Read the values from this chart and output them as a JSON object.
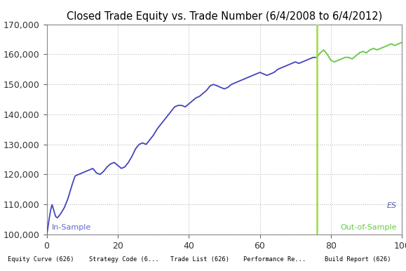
{
  "title": "Closed Trade Equity vs. Trade Number (6/4/2008 to 6/4/2012)",
  "xlim": [
    0,
    100
  ],
  "ylim": [
    100000,
    170000
  ],
  "xticks": [
    0,
    20,
    40,
    60,
    80,
    100
  ],
  "yticks": [
    100000,
    110000,
    120000,
    130000,
    140000,
    150000,
    160000,
    170000
  ],
  "vline_x": 76,
  "is_label": "In-Sample",
  "oos_label": "Out-of-Sample",
  "es_label": "ES",
  "is_color": "#4444bb",
  "oos_color": "#77cc55",
  "vline_color": "#99dd44",
  "label_is_color": "#6666cc",
  "label_oos_color": "#66cc44",
  "label_es_color": "#5555aa",
  "plot_bg_color": "#ffffff",
  "fig_bg_color": "#ffffff",
  "grid_color": "#bbbbbb",
  "title_fontsize": 10.5,
  "tick_fontsize": 9,
  "taskbar_bg": "#3c3c3c",
  "taskbar_item_bg": "#555577",
  "taskbar_items": [
    "Equity Curve (626)",
    "Strategy Code (6...",
    "Trade List (626)",
    "Performance Re...",
    "Build Report (626)"
  ],
  "is_waypoints_x": [
    0,
    0.3,
    0.6,
    1.0,
    1.5,
    2.0,
    2.5,
    3.0,
    4.0,
    5.0,
    6.0,
    7.0,
    8.0,
    9.0,
    10.0,
    11.0,
    12.0,
    13.0,
    14.0,
    15.0,
    16.0,
    17.0,
    18.0,
    19.0,
    20.0,
    21.0,
    22.0,
    23.0,
    24.0,
    25.0,
    26.0,
    27.0,
    28.0,
    29.0,
    30.0,
    31.0,
    32.0,
    33.0,
    34.0,
    35.0,
    36.0,
    37.0,
    38.0,
    39.0,
    40.0,
    41.0,
    42.0,
    43.0,
    44.0,
    45.0,
    46.0,
    47.0,
    48.0,
    49.0,
    50.0,
    51.0,
    52.0,
    53.0,
    54.0,
    55.0,
    56.0,
    57.0,
    58.0,
    59.0,
    60.0,
    61.0,
    62.0,
    63.0,
    64.0,
    65.0,
    66.0,
    67.0,
    68.0,
    69.0,
    70.0,
    71.0,
    72.0,
    73.0,
    74.0,
    75.0,
    76.0
  ],
  "is_waypoints_y": [
    100000,
    102000,
    104500,
    107500,
    110000,
    108000,
    106000,
    105500,
    107000,
    109000,
    112000,
    116000,
    119500,
    120000,
    120500,
    121000,
    121500,
    122000,
    120500,
    120000,
    121000,
    122500,
    123500,
    124000,
    123000,
    122000,
    122500,
    124000,
    126000,
    128500,
    130000,
    130500,
    130000,
    131500,
    133000,
    135000,
    136500,
    138000,
    139500,
    141000,
    142500,
    143000,
    143000,
    142500,
    143500,
    144500,
    145500,
    146000,
    147000,
    148000,
    149500,
    150000,
    149500,
    149000,
    148500,
    149000,
    150000,
    150500,
    151000,
    151500,
    152000,
    152500,
    153000,
    153500,
    154000,
    153500,
    153000,
    153500,
    154000,
    155000,
    155500,
    156000,
    156500,
    157000,
    157500,
    157000,
    157500,
    158000,
    158500,
    159000,
    159000
  ],
  "oos_waypoints_x": [
    76,
    77,
    78,
    79,
    80,
    81,
    82,
    83,
    84,
    85,
    86,
    87,
    88,
    89,
    90,
    91,
    92,
    93,
    94,
    95,
    96,
    97,
    98,
    99,
    100
  ],
  "oos_waypoints_y": [
    159000,
    160500,
    161500,
    160000,
    158000,
    157500,
    158000,
    158500,
    159000,
    159000,
    158500,
    159500,
    160500,
    161000,
    160500,
    161500,
    162000,
    161500,
    162000,
    162500,
    163000,
    163500,
    163000,
    163500,
    164000
  ]
}
